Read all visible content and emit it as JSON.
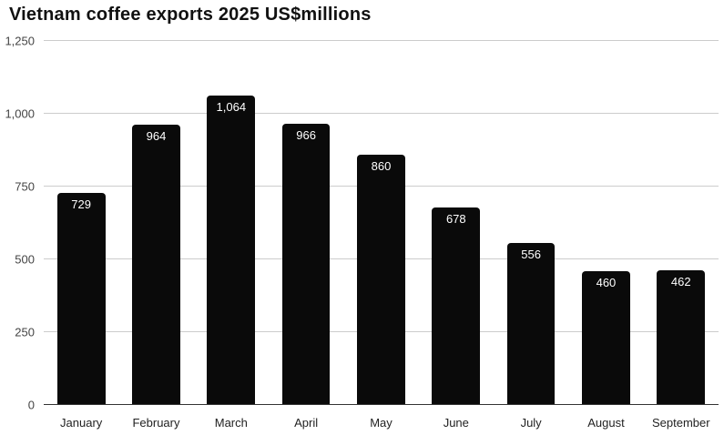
{
  "chart_data": {
    "type": "bar",
    "title": "Vietnam coffee exports 2025 US$millions",
    "categories": [
      "January",
      "February",
      "March",
      "April",
      "May",
      "June",
      "July",
      "August",
      "September"
    ],
    "values": [
      729,
      964,
      1064,
      966,
      860,
      678,
      556,
      460,
      462
    ],
    "value_labels": [
      "729",
      "964",
      "1,064",
      "966",
      "860",
      "678",
      "556",
      "460",
      "462"
    ],
    "xlabel": "",
    "ylabel": "",
    "ylim": [
      0,
      1250
    ],
    "yticks": [
      0,
      250,
      500,
      750,
      1000,
      1250
    ],
    "ytick_labels": [
      "0",
      "250",
      "500",
      "750",
      "1,000",
      "1,250"
    ],
    "grid": "horizontal",
    "legend": "none",
    "colors": {
      "bar": "#0a0a0a",
      "grid": "#cccccc",
      "baseline": "#333333",
      "title": "#111111",
      "bar_label_text": "#ffffff"
    }
  }
}
